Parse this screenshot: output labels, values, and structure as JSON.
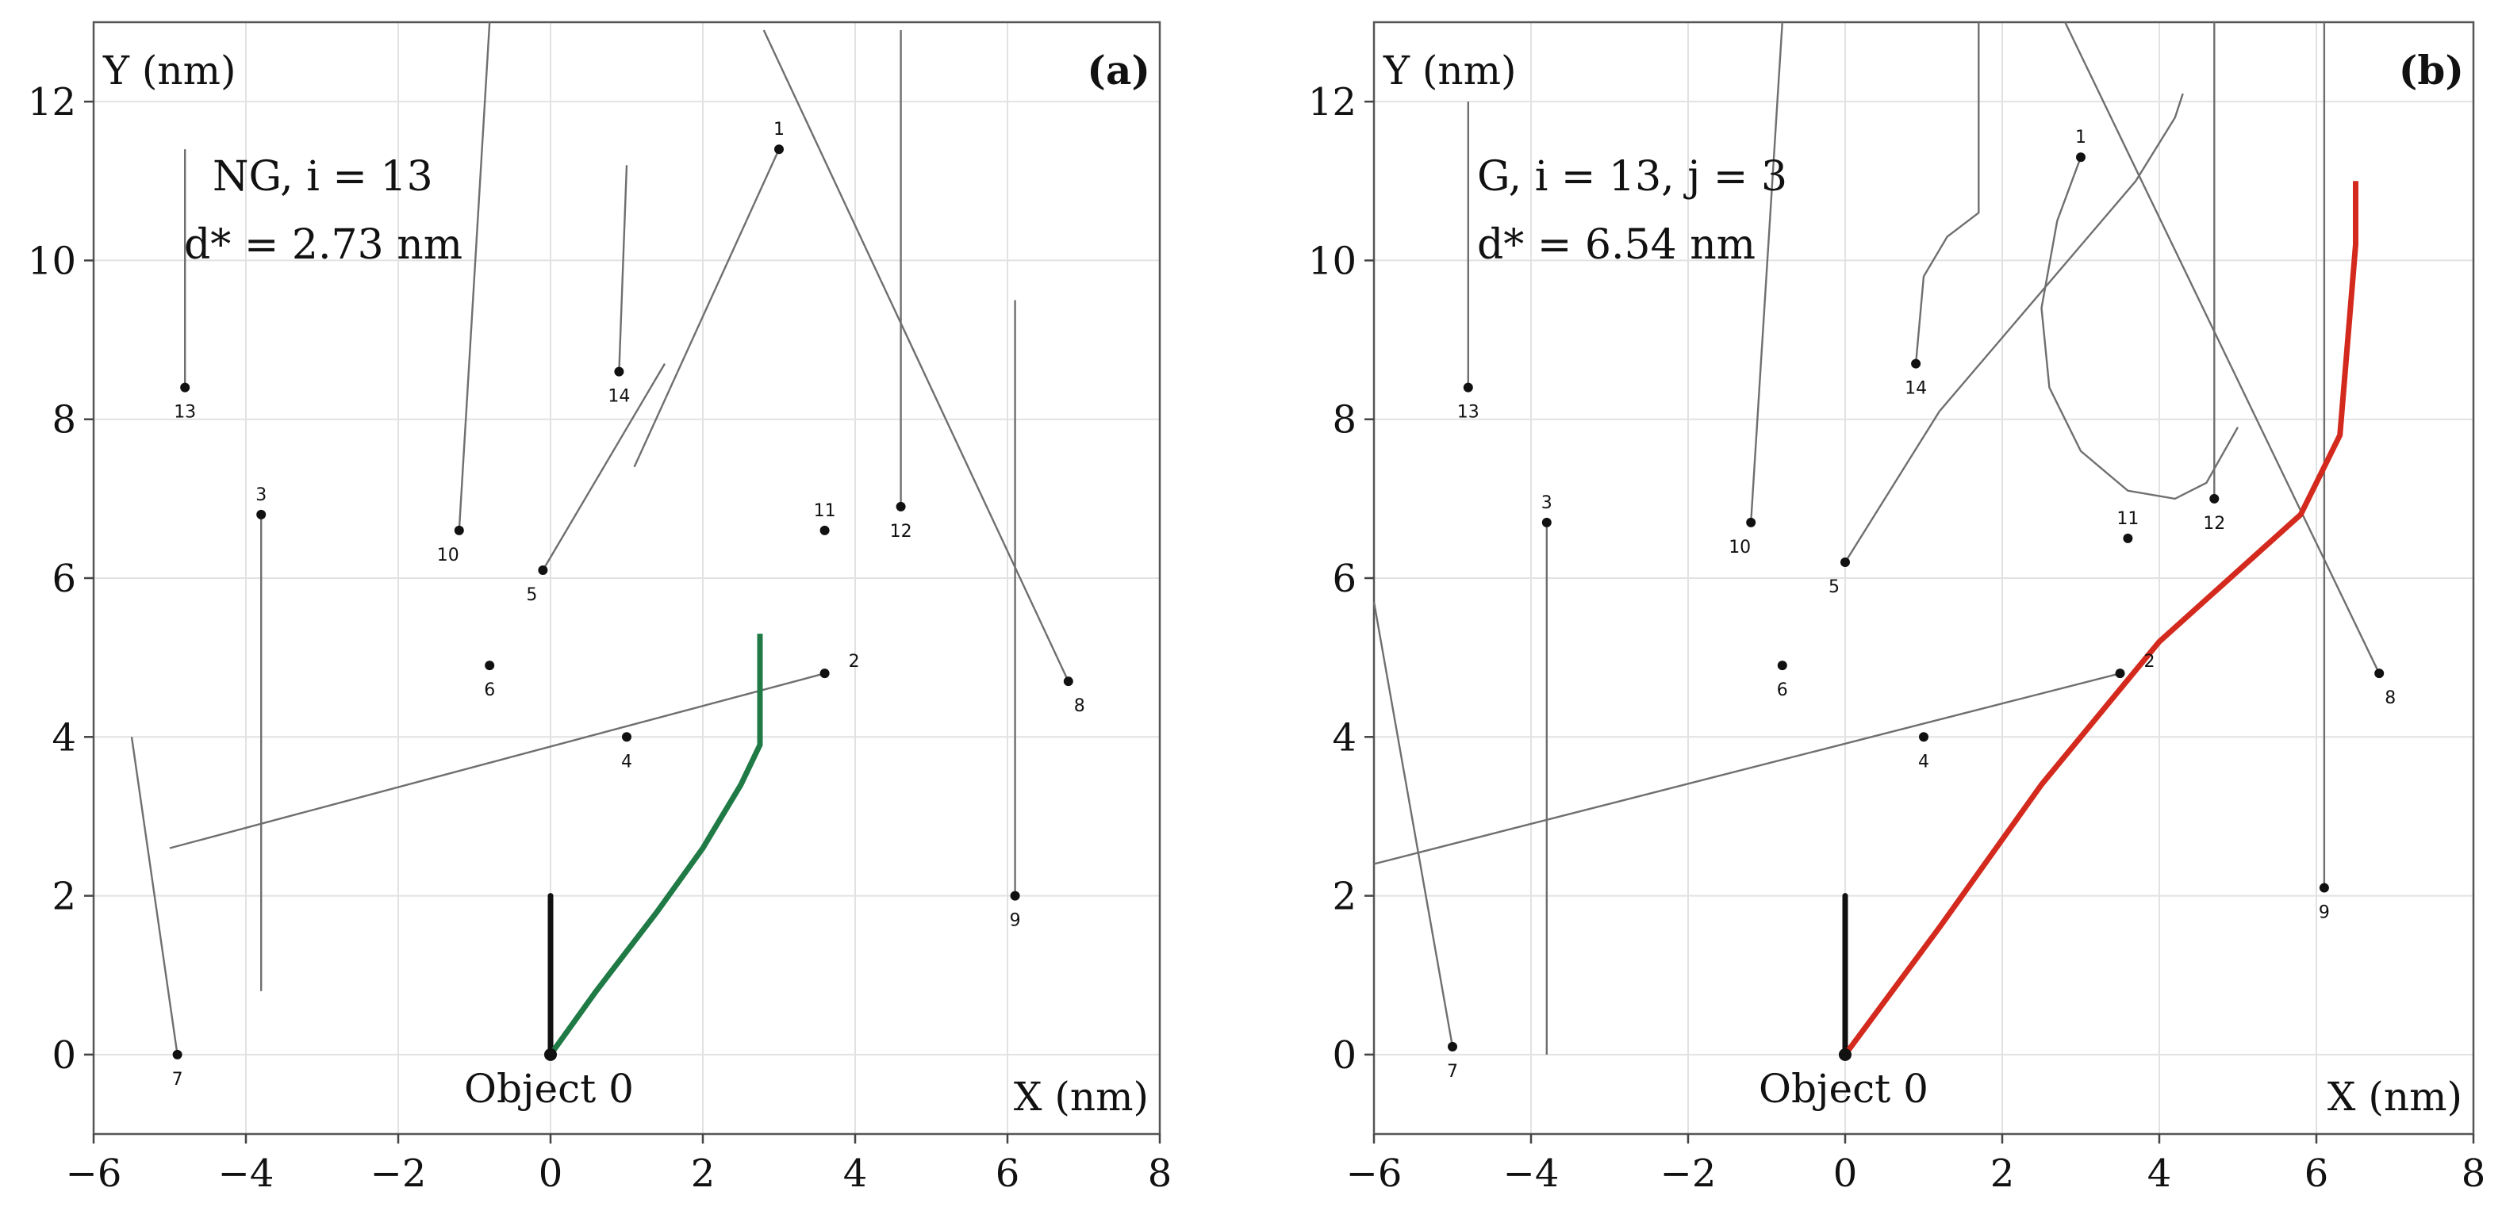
{
  "chart_data": [
    {
      "type": "scatter",
      "panel_label": "(a)",
      "annotation_lines": [
        "NG, i = 13",
        "d* = 2.73 nm"
      ],
      "xlabel": "X (nm)",
      "ylabel": "Y (nm)",
      "xlim": [
        -6,
        8
      ],
      "ylim": [
        -1,
        13
      ],
      "xticks": [
        -6,
        -4,
        -2,
        0,
        2,
        4,
        6,
        8
      ],
      "yticks": [
        0,
        2,
        4,
        6,
        8,
        10,
        12
      ],
      "xtick_labels": [
        "−6",
        "−4",
        "−2",
        "0",
        "2",
        "4",
        "6",
        "8"
      ],
      "ytick_labels": [
        "0",
        "2",
        "4",
        "6",
        "8",
        "10",
        "12"
      ],
      "grid": true,
      "origin_label": "Object 0",
      "objects": [
        {
          "id": "1",
          "x": 3.0,
          "y": 11.4
        },
        {
          "id": "2",
          "x": 3.6,
          "y": 4.8
        },
        {
          "id": "3",
          "x": -3.8,
          "y": 6.8
        },
        {
          "id": "4",
          "x": 1.0,
          "y": 4.0
        },
        {
          "id": "5",
          "x": -0.1,
          "y": 6.1
        },
        {
          "id": "6",
          "x": -0.8,
          "y": 4.9
        },
        {
          "id": "7",
          "x": -4.9,
          "y": 0.0
        },
        {
          "id": "8",
          "x": 6.8,
          "y": 4.7
        },
        {
          "id": "9",
          "x": 6.1,
          "y": 2.0
        },
        {
          "id": "10",
          "x": -1.2,
          "y": 6.6
        },
        {
          "id": "11",
          "x": 3.6,
          "y": 6.6
        },
        {
          "id": "12",
          "x": 4.6,
          "y": 6.9
        },
        {
          "id": "13",
          "x": -4.8,
          "y": 8.4
        },
        {
          "id": "14",
          "x": 0.9,
          "y": 8.6
        }
      ],
      "trajectories": [
        {
          "id": "1",
          "points": [
            [
              3.0,
              11.4
            ],
            [
              1.1,
              7.4
            ]
          ]
        },
        {
          "id": "2",
          "points": [
            [
              3.6,
              4.8
            ],
            [
              -5.0,
              2.6
            ]
          ]
        },
        {
          "id": "3",
          "points": [
            [
              -3.8,
              6.8
            ],
            [
              -3.8,
              0.8
            ]
          ]
        },
        {
          "id": "5",
          "points": [
            [
              -0.1,
              6.1
            ],
            [
              1.5,
              8.7
            ]
          ]
        },
        {
          "id": "7",
          "points": [
            [
              -4.9,
              0.0
            ],
            [
              -5.5,
              4.0
            ]
          ]
        },
        {
          "id": "8",
          "points": [
            [
              6.8,
              4.7
            ],
            [
              2.8,
              12.9
            ]
          ]
        },
        {
          "id": "9",
          "points": [
            [
              6.1,
              2.0
            ],
            [
              6.1,
              9.5
            ]
          ]
        },
        {
          "id": "10",
          "points": [
            [
              -1.2,
              6.6
            ],
            [
              -0.8,
              13.0
            ]
          ]
        },
        {
          "id": "12",
          "points": [
            [
              4.6,
              6.9
            ],
            [
              4.6,
              12.9
            ]
          ]
        },
        {
          "id": "13",
          "points": [
            [
              -4.8,
              8.4
            ],
            [
              -4.8,
              11.4
            ]
          ]
        },
        {
          "id": "14",
          "points": [
            [
              0.9,
              8.6
            ],
            [
              1.0,
              11.2
            ]
          ]
        }
      ],
      "object0_heading": [
        [
          0.0,
          0.0
        ],
        [
          0.0,
          2.0
        ]
      ],
      "path": {
        "color": "#1f7a45",
        "points": [
          [
            0.0,
            0.0
          ],
          [
            0.6,
            0.8
          ],
          [
            1.4,
            1.8
          ],
          [
            2.0,
            2.6
          ],
          [
            2.5,
            3.4
          ],
          [
            2.75,
            3.9
          ],
          [
            2.75,
            5.3
          ]
        ]
      }
    },
    {
      "type": "scatter",
      "panel_label": "(b)",
      "annotation_lines": [
        "G, i = 13, j = 3",
        "d* = 6.54 nm"
      ],
      "xlabel": "X (nm)",
      "ylabel": "Y (nm)",
      "xlim": [
        -6,
        8
      ],
      "ylim": [
        -1,
        13
      ],
      "xticks": [
        -6,
        -4,
        -2,
        0,
        2,
        4,
        6,
        8
      ],
      "yticks": [
        0,
        2,
        4,
        6,
        8,
        10,
        12
      ],
      "xtick_labels": [
        "−6",
        "−4",
        "−2",
        "0",
        "2",
        "4",
        "6",
        "8"
      ],
      "ytick_labels": [
        "0",
        "2",
        "4",
        "6",
        "8",
        "10",
        "12"
      ],
      "grid": true,
      "origin_label": "Object 0",
      "objects": [
        {
          "id": "1",
          "x": 3.0,
          "y": 11.3
        },
        {
          "id": "2",
          "x": 3.5,
          "y": 4.8
        },
        {
          "id": "3",
          "x": -3.8,
          "y": 6.7
        },
        {
          "id": "4",
          "x": 1.0,
          "y": 4.0
        },
        {
          "id": "5",
          "x": 0.0,
          "y": 6.2
        },
        {
          "id": "6",
          "x": -0.8,
          "y": 4.9
        },
        {
          "id": "7",
          "x": -5.0,
          "y": 0.1
        },
        {
          "id": "8",
          "x": 6.8,
          "y": 4.8
        },
        {
          "id": "9",
          "x": 6.1,
          "y": 2.1
        },
        {
          "id": "10",
          "x": -1.2,
          "y": 6.7
        },
        {
          "id": "11",
          "x": 3.6,
          "y": 6.5
        },
        {
          "id": "12",
          "x": 4.7,
          "y": 7.0
        },
        {
          "id": "13",
          "x": -4.8,
          "y": 8.4
        },
        {
          "id": "14",
          "x": 0.9,
          "y": 8.7
        }
      ],
      "trajectories": [
        {
          "id": "1",
          "points": [
            [
              3.0,
              11.3
            ],
            [
              2.7,
              10.5
            ],
            [
              2.5,
              9.4
            ],
            [
              2.6,
              8.4
            ],
            [
              3.0,
              7.6
            ],
            [
              3.6,
              7.1
            ],
            [
              4.2,
              7.0
            ],
            [
              4.6,
              7.2
            ],
            [
              5.0,
              7.9
            ]
          ]
        },
        {
          "id": "2",
          "points": [
            [
              3.5,
              4.8
            ],
            [
              -6.0,
              2.4
            ]
          ]
        },
        {
          "id": "3",
          "points": [
            [
              -3.8,
              6.7
            ],
            [
              -3.8,
              0.0
            ]
          ]
        },
        {
          "id": "5",
          "points": [
            [
              0.0,
              6.2
            ],
            [
              1.2,
              8.1
            ],
            [
              3.7,
              11.0
            ],
            [
              4.2,
              11.8
            ],
            [
              4.3,
              12.1
            ]
          ]
        },
        {
          "id": "7",
          "points": [
            [
              -5.0,
              0.1
            ],
            [
              -6.0,
              5.7
            ]
          ]
        },
        {
          "id": "8",
          "points": [
            [
              6.8,
              4.8
            ],
            [
              2.8,
              13.0
            ]
          ]
        },
        {
          "id": "9",
          "points": [
            [
              6.1,
              2.1
            ],
            [
              6.1,
              13.0
            ]
          ]
        },
        {
          "id": "10",
          "points": [
            [
              -1.2,
              6.7
            ],
            [
              -0.8,
              13.0
            ]
          ]
        },
        {
          "id": "12",
          "points": [
            [
              4.7,
              7.0
            ],
            [
              4.7,
              13.0
            ]
          ]
        },
        {
          "id": "13",
          "points": [
            [
              -4.8,
              8.4
            ],
            [
              -4.8,
              12.0
            ]
          ]
        },
        {
          "id": "14",
          "points": [
            [
              0.9,
              8.7
            ],
            [
              1.0,
              9.8
            ],
            [
              1.3,
              10.3
            ],
            [
              1.7,
              10.6
            ],
            [
              1.7,
              13.0
            ]
          ]
        }
      ],
      "object0_heading": [
        [
          0.0,
          0.0
        ],
        [
          0.0,
          2.0
        ]
      ],
      "path": {
        "color": "#d42a1e",
        "points": [
          [
            0.0,
            0.0
          ],
          [
            1.2,
            1.6
          ],
          [
            2.5,
            3.4
          ],
          [
            4.0,
            5.2
          ],
          [
            5.8,
            6.8
          ],
          [
            6.3,
            7.8
          ],
          [
            6.5,
            10.2
          ],
          [
            6.5,
            11.0
          ]
        ]
      }
    }
  ]
}
